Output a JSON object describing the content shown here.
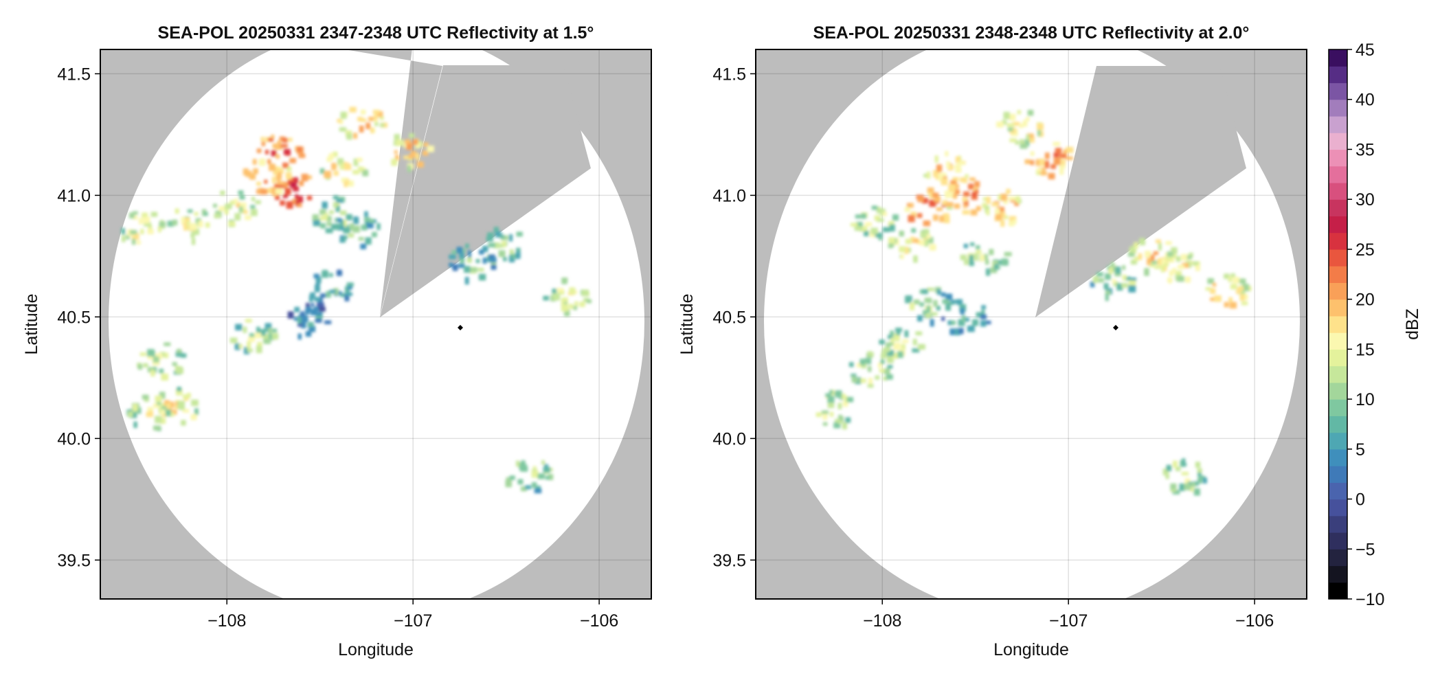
{
  "chart_data": [
    {
      "type": "heatmap",
      "title": "SEA-POL 20250331 2347-2348 UTC Reflectivity at 1.5°",
      "xlabel": "Longitude",
      "ylabel": "Latitude",
      "xlim": [
        -108.68,
        -105.72
      ],
      "ylim": [
        39.34,
        41.6
      ],
      "xticks": [
        -108,
        -107,
        -106
      ],
      "xtick_labels": [
        "−108",
        "−107",
        "−106"
      ],
      "yticks": [
        39.5,
        40.0,
        40.5,
        41.0,
        41.5
      ],
      "ytick_labels": [
        "39.5",
        "40.0",
        "40.5",
        "41.0",
        "41.5"
      ],
      "grid": true,
      "background_color": "#bdbdbd",
      "radar_center": [
        -106.75,
        40.46
      ],
      "sweep_coverage": {
        "apex": [
          -107.19,
          40.49
        ],
        "range_edge_lat": 39.38,
        "range_edge_lon_max": -105.75
      },
      "blocked_sectors_apex_lonlat": [
        [
          -107.19,
          40.49
        ]
      ],
      "echo_clusters": [
        {
          "lon": -107.62,
          "lat": 41.02,
          "dbz": 26
        },
        {
          "lon": -107.78,
          "lat": 41.08,
          "dbz": 23
        },
        {
          "lon": -107.72,
          "lat": 41.18,
          "dbz": 24
        },
        {
          "lon": -107.42,
          "lat": 40.92,
          "dbz": 14
        },
        {
          "lon": -107.38,
          "lat": 41.1,
          "dbz": 18
        },
        {
          "lon": -107.28,
          "lat": 41.3,
          "dbz": 20
        },
        {
          "lon": -107.03,
          "lat": 41.18,
          "dbz": 20
        },
        {
          "lon": -107.3,
          "lat": 40.86,
          "dbz": 11
        },
        {
          "lon": -107.95,
          "lat": 40.95,
          "dbz": 16
        },
        {
          "lon": -108.2,
          "lat": 40.88,
          "dbz": 15
        },
        {
          "lon": -108.45,
          "lat": 40.86,
          "dbz": 16
        },
        {
          "lon": -106.52,
          "lat": 40.8,
          "dbz": 12
        },
        {
          "lon": -106.68,
          "lat": 40.72,
          "dbz": 11
        },
        {
          "lon": -106.17,
          "lat": 40.58,
          "dbz": 15
        },
        {
          "lon": -107.55,
          "lat": 40.48,
          "dbz": 7
        },
        {
          "lon": -107.45,
          "lat": 40.62,
          "dbz": 9
        },
        {
          "lon": -107.85,
          "lat": 40.42,
          "dbz": 14
        },
        {
          "lon": -108.28,
          "lat": 40.13,
          "dbz": 17
        },
        {
          "lon": -108.4,
          "lat": 40.1,
          "dbz": 15
        },
        {
          "lon": -108.35,
          "lat": 40.32,
          "dbz": 15
        },
        {
          "lon": -106.38,
          "lat": 39.85,
          "dbz": 13
        }
      ]
    },
    {
      "type": "heatmap",
      "title": "SEA-POL 20250331 2348-2348 UTC Reflectivity at 2.0°",
      "xlabel": "Longitude",
      "ylabel": "Latitude",
      "xlim": [
        -108.68,
        -105.72
      ],
      "ylim": [
        39.34,
        41.6
      ],
      "xticks": [
        -108,
        -107,
        -106
      ],
      "xtick_labels": [
        "−108",
        "−107",
        "−106"
      ],
      "yticks": [
        39.5,
        40.0,
        40.5,
        41.0,
        41.5
      ],
      "ytick_labels": [
        "39.5",
        "40.0",
        "40.5",
        "41.0",
        "41.5"
      ],
      "grid": true,
      "background_color": "#bdbdbd",
      "radar_center": [
        -106.75,
        40.46
      ],
      "echo_clusters": [
        {
          "lon": -107.55,
          "lat": 41.0,
          "dbz": 22
        },
        {
          "lon": -107.75,
          "lat": 40.95,
          "dbz": 25
        },
        {
          "lon": -107.65,
          "lat": 41.1,
          "dbz": 21
        },
        {
          "lon": -107.35,
          "lat": 40.95,
          "dbz": 20
        },
        {
          "lon": -107.1,
          "lat": 41.15,
          "dbz": 22
        },
        {
          "lon": -107.25,
          "lat": 41.28,
          "dbz": 18
        },
        {
          "lon": -107.85,
          "lat": 40.8,
          "dbz": 17
        },
        {
          "lon": -108.05,
          "lat": 40.9,
          "dbz": 15
        },
        {
          "lon": -107.45,
          "lat": 40.75,
          "dbz": 14
        },
        {
          "lon": -107.55,
          "lat": 40.5,
          "dbz": 9
        },
        {
          "lon": -107.75,
          "lat": 40.55,
          "dbz": 13
        },
        {
          "lon": -107.9,
          "lat": 40.38,
          "dbz": 14
        },
        {
          "lon": -108.05,
          "lat": 40.28,
          "dbz": 15
        },
        {
          "lon": -108.25,
          "lat": 40.12,
          "dbz": 15
        },
        {
          "lon": -106.55,
          "lat": 40.75,
          "dbz": 19
        },
        {
          "lon": -106.42,
          "lat": 40.7,
          "dbz": 18
        },
        {
          "lon": -106.15,
          "lat": 40.6,
          "dbz": 19
        },
        {
          "lon": -106.75,
          "lat": 40.65,
          "dbz": 13
        },
        {
          "lon": -106.38,
          "lat": 39.84,
          "dbz": 14
        }
      ]
    }
  ],
  "colorbar": {
    "label": "dBZ",
    "min": -10,
    "max": 45,
    "ticks": [
      -10,
      -5,
      0,
      5,
      10,
      15,
      20,
      25,
      30,
      35,
      40,
      45
    ],
    "tick_labels": [
      "−10",
      "−5",
      "0",
      "5",
      "10",
      "15",
      "20",
      "25",
      "30",
      "35",
      "40",
      "45"
    ],
    "colors": [
      "#000000",
      "#141420",
      "#23233f",
      "#2f2f5e",
      "#3a3f7c",
      "#46519c",
      "#4a64ae",
      "#3f7ab8",
      "#3f8fbc",
      "#4ea7b3",
      "#62b8a5",
      "#7fc8a0",
      "#a3d69b",
      "#c6e79b",
      "#e4f29c",
      "#fbf8b0",
      "#fee28b",
      "#fdc16d",
      "#f9a058",
      "#f37c48",
      "#e9563e",
      "#d8323f",
      "#c51f48",
      "#c8345f",
      "#d8507e",
      "#e46f9c",
      "#ec90b6",
      "#eab0cf",
      "#c9a1cf",
      "#a27dbc",
      "#7b55a4",
      "#562d85",
      "#3a0f60"
    ]
  }
}
